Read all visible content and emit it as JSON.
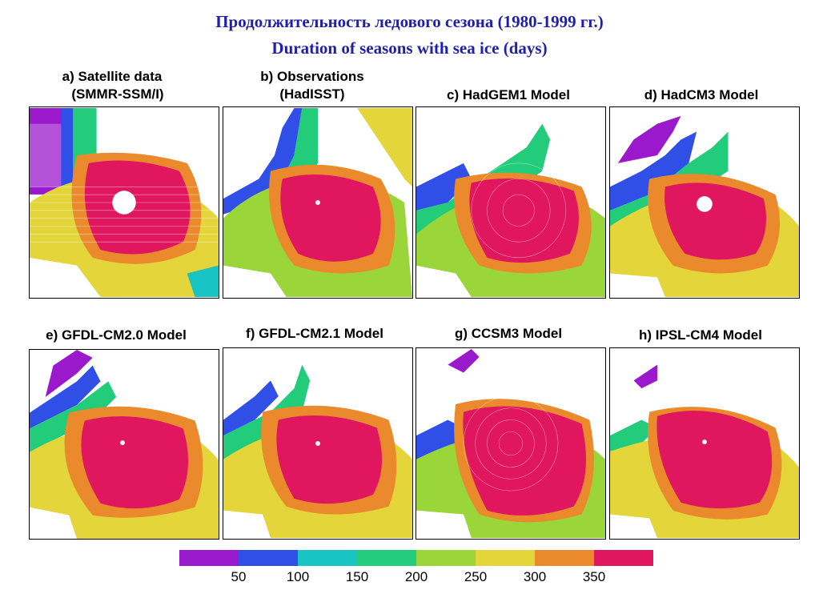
{
  "header": {
    "title_ru": "Продолжительность ледового сезона (1980-1999 гг.)",
    "title_en": "Duration of seasons with sea ice (days)"
  },
  "panels": [
    {
      "label_line1": "a) Satellite data",
      "label_line2": "(SMMR-SSM/I)"
    },
    {
      "label_line1": "b) Observations",
      "label_line2": "(HadISST)"
    },
    {
      "label_line1": "c) HadGEM1 Model",
      "label_line2": ""
    },
    {
      "label_line1": "d) HadCM3 Model",
      "label_line2": ""
    },
    {
      "label_line1": "e) GFDL-CM2.0 Model",
      "label_line2": ""
    },
    {
      "label_line1": "f) GFDL-CM2.1 Model",
      "label_line2": ""
    },
    {
      "label_line1": "g) CCSM3 Model",
      "label_line2": ""
    },
    {
      "label_line1": "h) IPSL-CM4 Model",
      "label_line2": ""
    }
  ],
  "legend": {
    "colors": [
      "#9b19cc",
      "#2f4fe6",
      "#18c3c3",
      "#22cc7a",
      "#9ad63a",
      "#e3d53a",
      "#ea8a2c",
      "#e0165f"
    ],
    "ticks": [
      "50",
      "100",
      "150",
      "200",
      "250",
      "300",
      "350"
    ]
  },
  "colors": {
    "title": "#1f1fa8",
    "ice_core": "#e0165f",
    "ice_edge": "#ea8a2c"
  }
}
